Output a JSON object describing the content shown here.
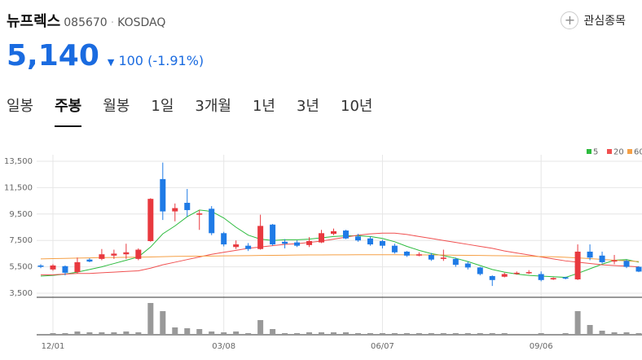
{
  "header": {
    "name": "뉴프렉스",
    "code": "085670",
    "market": "KOSDAQ",
    "watch": "관심종목"
  },
  "price": {
    "current": "5,140",
    "change": "100",
    "change_pct": "(-1.91%)"
  },
  "tabs": [
    "일봉",
    "주봉",
    "월봉",
    "1일",
    "3개월",
    "1년",
    "3년",
    "10년"
  ],
  "selected_tab": 1,
  "chart_data": {
    "type": "candlestick",
    "categories": [
      null,
      "12/01",
      null,
      null,
      null,
      null,
      null,
      null,
      null,
      null,
      null,
      null,
      null,
      null,
      null,
      "03/08",
      null,
      null,
      null,
      null,
      null,
      null,
      null,
      null,
      null,
      null,
      null,
      null,
      "06/07",
      null,
      null,
      null,
      null,
      null,
      null,
      null,
      null,
      null,
      null,
      null,
      null,
      "09/06",
      null,
      null,
      null,
      null,
      null,
      null,
      null,
      null
    ],
    "open": [
      5600,
      5300,
      5550,
      5100,
      6050,
      6100,
      6350,
      6450,
      6100,
      7450,
      12150,
      9700,
      10350,
      9450,
      9900,
      8050,
      7000,
      7100,
      6850,
      8700,
      7400,
      7350,
      7150,
      7350,
      8000,
      8250,
      7800,
      7650,
      7450,
      7100,
      6650,
      6350,
      6400,
      6100,
      6100,
      5750,
      5450,
      4800,
      4750,
      5000,
      5050,
      4950,
      4550,
      4700,
      4550,
      6650,
      6350,
      5900,
      5950,
      5500
    ],
    "high": [
      5700,
      5700,
      5600,
      6200,
      6150,
      6850,
      6800,
      7250,
      6900,
      10700,
      13400,
      10300,
      11400,
      9800,
      10100,
      8150,
      7500,
      7300,
      9450,
      8750,
      7600,
      7500,
      7750,
      8300,
      8400,
      8300,
      8000,
      7800,
      7550,
      7250,
      6700,
      6600,
      6550,
      6800,
      6200,
      5900,
      5500,
      4850,
      5050,
      5150,
      5250,
      5150,
      4700,
      4750,
      7200,
      7200,
      6650,
      6400,
      6050,
      5550
    ],
    "low": [
      5400,
      5200,
      4850,
      5000,
      5850,
      6000,
      6100,
      6100,
      6000,
      7400,
      9050,
      8950,
      9300,
      8300,
      7900,
      7050,
      6850,
      6700,
      6800,
      7100,
      6900,
      7000,
      7000,
      7300,
      7900,
      7600,
      7400,
      7100,
      6900,
      6500,
      6250,
      6300,
      5950,
      5950,
      5500,
      5300,
      4850,
      4050,
      4700,
      4900,
      4950,
      4400,
      4500,
      4550,
      4500,
      6000,
      5750,
      5700,
      5400,
      5100
    ],
    "close": [
      5500,
      5600,
      5050,
      5850,
      5900,
      6450,
      6500,
      6600,
      6800,
      10650,
      9700,
      9950,
      9800,
      9550,
      8050,
      7200,
      7200,
      6850,
      8600,
      7200,
      7250,
      7100,
      7450,
      8050,
      8200,
      7650,
      7500,
      7200,
      7100,
      6600,
      6350,
      6450,
      6050,
      6200,
      5650,
      5450,
      4950,
      4500,
      4950,
      5050,
      5100,
      4500,
      4650,
      4650,
      6650,
      6200,
      5850,
      6000,
      5500,
      5140
    ],
    "volume": [
      1,
      2,
      2,
      4,
      3,
      3,
      3,
      4,
      3,
      39,
      29,
      9,
      8,
      7,
      4,
      3,
      4,
      2,
      18,
      7,
      2,
      2,
      3,
      3,
      3,
      3,
      2,
      2,
      2,
      2,
      2,
      2,
      2,
      2,
      2,
      2,
      2,
      2,
      2,
      1,
      1,
      2,
      1,
      2,
      29,
      12,
      5,
      3,
      3,
      2
    ],
    "up_color": "#e8393f",
    "down_color": "#1f7be6",
    "volume_color": "#999999",
    "series": [
      {
        "name": "5",
        "color": "#2dbb3e",
        "values": [
          4800,
          4850,
          4950,
          5100,
          5300,
          5500,
          5750,
          6000,
          6250,
          7000,
          8000,
          8600,
          9300,
          9800,
          9700,
          9200,
          8500,
          7900,
          7600,
          7500,
          7550,
          7550,
          7600,
          7700,
          7800,
          7850,
          7850,
          7800,
          7650,
          7400,
          7050,
          6750,
          6500,
          6350,
          6150,
          5900,
          5600,
          5300,
          5100,
          4950,
          4850,
          4800,
          4750,
          4700,
          5000,
          5350,
          5700,
          6000,
          6050,
          5850
        ]
      },
      {
        "name": "20",
        "color": "#f05050",
        "values": [
          4900,
          4900,
          4950,
          5000,
          5000,
          5050,
          5100,
          5150,
          5200,
          5400,
          5650,
          5850,
          6050,
          6250,
          6450,
          6600,
          6750,
          6900,
          7000,
          7100,
          7200,
          7250,
          7350,
          7450,
          7600,
          7750,
          7900,
          8000,
          8050,
          8050,
          7950,
          7800,
          7650,
          7500,
          7350,
          7200,
          7050,
          6900,
          6700,
          6550,
          6400,
          6250,
          6100,
          5950,
          5850,
          5750,
          5650,
          5600,
          5550,
          5500
        ]
      },
      {
        "name": "60",
        "color": "#f5a046",
        "values": [
          6100,
          6120,
          6140,
          6160,
          6180,
          6200,
          6210,
          6220,
          6230,
          6250,
          6270,
          6290,
          6300,
          6310,
          6320,
          6330,
          6340,
          6350,
          6360,
          6370,
          6380,
          6390,
          6400,
          6400,
          6410,
          6410,
          6420,
          6420,
          6420,
          6420,
          6410,
          6400,
          6400,
          6390,
          6380,
          6370,
          6360,
          6350,
          6340,
          6320,
          6300,
          6280,
          6260,
          6220,
          6180,
          6120,
          6060,
          6000,
          5950,
          5900
        ]
      }
    ],
    "ylim": [
      3500,
      13500
    ],
    "yticks": [
      {
        "value": 3500,
        "label": "3,500"
      },
      {
        "value": 5500,
        "label": "5,500"
      },
      {
        "value": 7500,
        "label": "7,500"
      },
      {
        "value": 9500,
        "label": "9,500"
      },
      {
        "value": 11500,
        "label": "11,500"
      },
      {
        "value": 13500,
        "label": "13,500"
      }
    ],
    "grid": true
  }
}
